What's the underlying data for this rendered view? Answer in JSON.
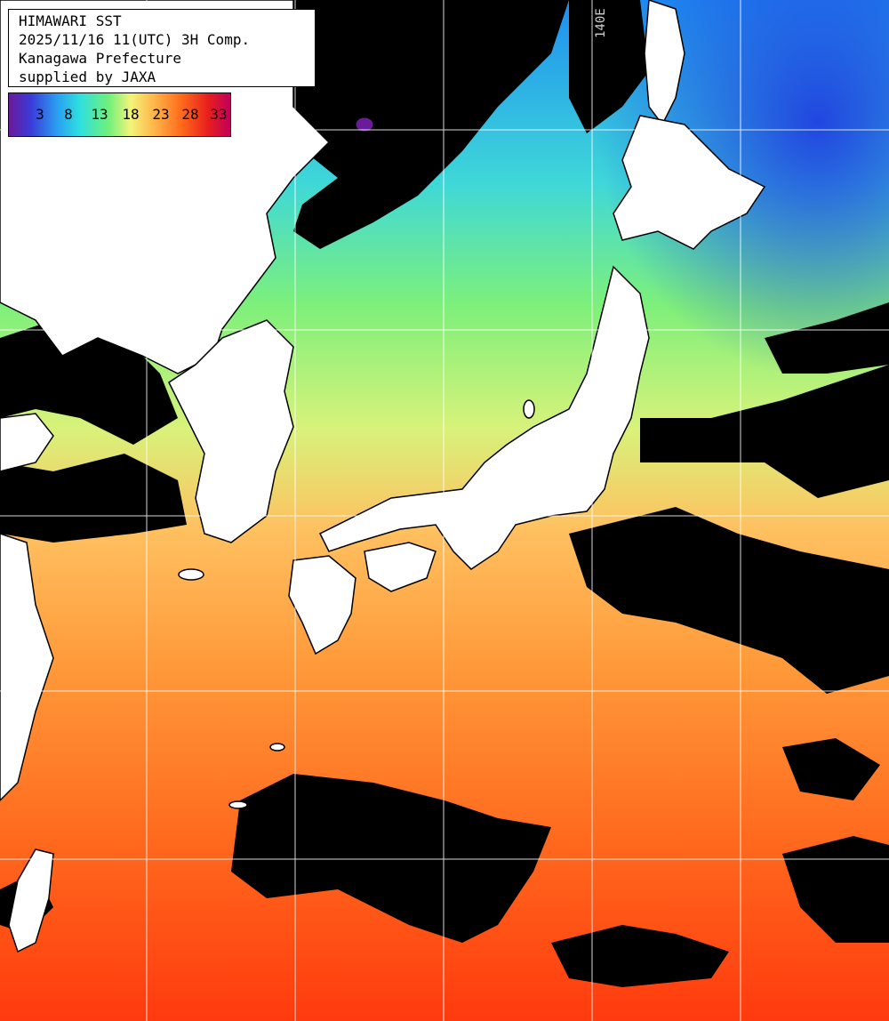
{
  "header": {
    "title": "HIMAWARI SST",
    "datetime": "2025/11/16 11(UTC) 3H Comp.",
    "region": "Kanagawa Prefecture",
    "credit": "supplied by JAXA"
  },
  "colorbar": {
    "ticks": [
      "3",
      "8",
      "13",
      "18",
      "23",
      "28",
      "33"
    ]
  },
  "grid": {
    "lon_label": "140E"
  },
  "colors": {
    "land": "#ffffff",
    "cloud": "#000000",
    "grid": "#ffffff"
  }
}
